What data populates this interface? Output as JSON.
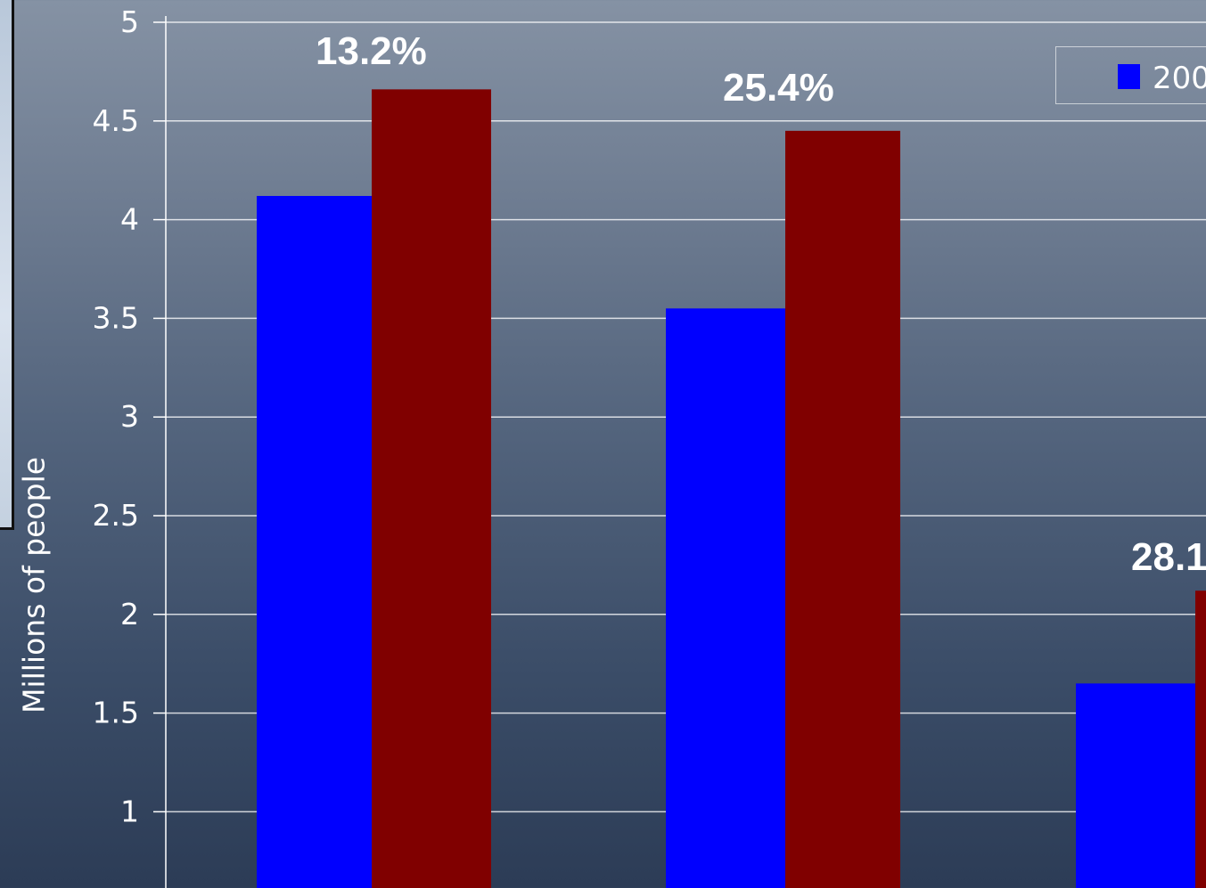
{
  "chart_data": {
    "type": "bar",
    "ylabel": "Millions of people",
    "ylim": [
      0.6,
      5
    ],
    "yticks": [
      "1",
      "1.5",
      "2",
      "2.5",
      "3",
      "3.5",
      "4",
      "4.5",
      "5"
    ],
    "grid": true,
    "legend": {
      "position": "top-right",
      "entries": [
        "200"
      ]
    },
    "series": [
      {
        "name": "200",
        "color": "#0000ff",
        "values": [
          4.12,
          3.55,
          1.65
        ]
      },
      {
        "color": "#800000",
        "values": [
          4.66,
          4.45,
          2.12
        ]
      }
    ],
    "annotations": [
      "13.2%",
      "25.4%",
      "28.1"
    ]
  }
}
